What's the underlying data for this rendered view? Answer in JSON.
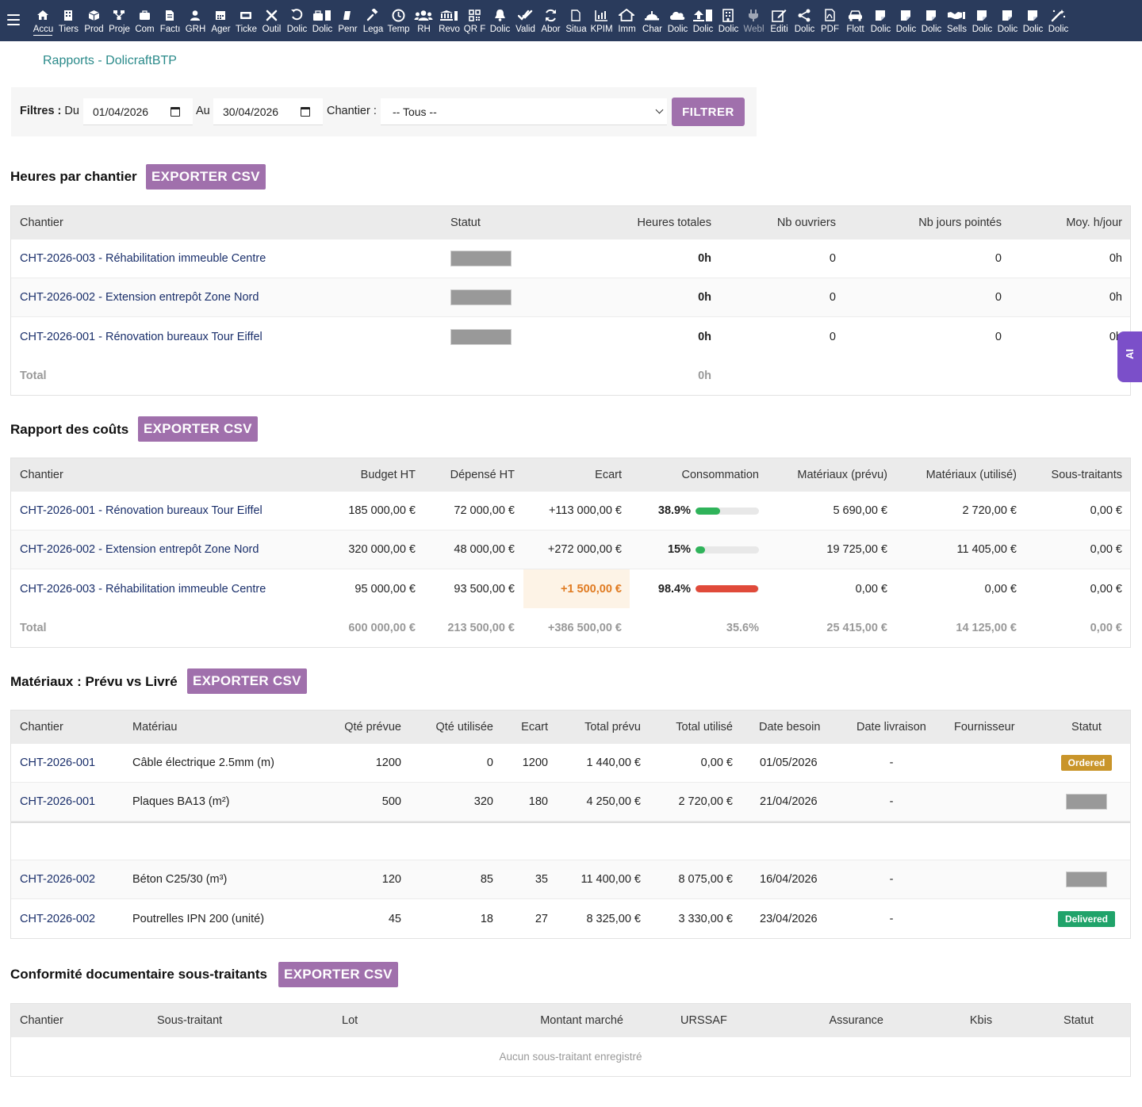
{
  "topbar": {
    "menu": [
      {
        "label": "Accu",
        "icon": "home-icon",
        "active": true
      },
      {
        "label": "Tiers",
        "icon": "building-icon"
      },
      {
        "label": "Prod",
        "icon": "cube-icon"
      },
      {
        "label": "Proje",
        "icon": "network-icon"
      },
      {
        "label": "Com",
        "icon": "suitcase-icon"
      },
      {
        "label": "Factı",
        "icon": "invoice-icon"
      },
      {
        "label": "GRH",
        "icon": "user-icon"
      },
      {
        "label": "Ager",
        "icon": "calendar-icon"
      },
      {
        "label": "Ticke",
        "icon": "ticket-icon"
      },
      {
        "label": "Outil",
        "icon": "tools-icon"
      },
      {
        "label": "Dolic",
        "icon": "undo-icon"
      },
      {
        "label": "Dolic",
        "icon": "toolbox-icon"
      },
      {
        "label": "Penr",
        "icon": "eraser-icon"
      },
      {
        "label": "Lega",
        "icon": "gavel-icon"
      },
      {
        "label": "Temp",
        "icon": "clock-icon"
      },
      {
        "label": "RH",
        "icon": "users-icon"
      },
      {
        "label": "Revo",
        "icon": "bank-icon"
      },
      {
        "label": "QR F",
        "icon": "qrcode-icon"
      },
      {
        "label": "Dolic",
        "icon": "bell-icon"
      },
      {
        "label": "Valid",
        "icon": "check-double-icon"
      },
      {
        "label": "Abor",
        "icon": "sync-icon"
      },
      {
        "label": "Situa",
        "icon": "document-icon"
      },
      {
        "label": "KPIM",
        "icon": "chart-bar-icon"
      },
      {
        "label": "Imm",
        "icon": "house-icon"
      },
      {
        "label": "Char",
        "icon": "hardhat-icon"
      },
      {
        "label": "Dolic",
        "icon": "cloud-icon"
      },
      {
        "label": "Dolic",
        "icon": "upload-icon"
      },
      {
        "label": "Dolic",
        "icon": "office-icon"
      },
      {
        "label": "Webl",
        "icon": "plug-icon",
        "dim": true
      },
      {
        "label": "Editi",
        "icon": "edit-icon"
      },
      {
        "label": "Dolic",
        "icon": "share-icon"
      },
      {
        "label": "PDF",
        "icon": "pdf-icon"
      },
      {
        "label": "Flott",
        "icon": "car-icon"
      },
      {
        "label": "Dolic",
        "icon": "file-icon"
      },
      {
        "label": "Dolic",
        "icon": "file-icon"
      },
      {
        "label": "Dolic",
        "icon": "file-icon"
      },
      {
        "label": "Sells",
        "icon": "handshake-icon"
      },
      {
        "label": "Dolic",
        "icon": "file-icon"
      },
      {
        "label": "Dolic",
        "icon": "file-icon"
      },
      {
        "label": "Dolic",
        "icon": "file-icon"
      },
      {
        "label": "Dolic",
        "icon": "magic-icon"
      }
    ]
  },
  "page": {
    "title": "Rapports - DolicraftBTP"
  },
  "filters": {
    "label": "Filtres :",
    "from_label": "Du",
    "from_value": "01/04/2026",
    "to_label": "Au",
    "to_value": "30/04/2026",
    "chantier_label": "Chantier :",
    "chantier_value": "-- Tous --",
    "submit": "FILTRER"
  },
  "export_label": "EXPORTER CSV",
  "hours": {
    "title": "Heures par chantier",
    "headers": [
      "Chantier",
      "Statut",
      "Heures totales",
      "Nb ouvriers",
      "Nb jours pointés",
      "Moy. h/jour"
    ],
    "rows": [
      {
        "chantier": "CHT-2026-003 - Réhabilitation immeuble Centre",
        "heures": "0h",
        "ouvriers": "0",
        "jours": "0",
        "moy": "0h"
      },
      {
        "chantier": "CHT-2026-002 - Extension entrepôt Zone Nord",
        "heures": "0h",
        "ouvriers": "0",
        "jours": "0",
        "moy": "0h"
      },
      {
        "chantier": "CHT-2026-001 - Rénovation bureaux Tour Eiffel",
        "heures": "0h",
        "ouvriers": "0",
        "jours": "0",
        "moy": "0h"
      }
    ],
    "total": {
      "label": "Total",
      "heures": "0h"
    }
  },
  "costs": {
    "title": "Rapport des coûts",
    "headers": [
      "Chantier",
      "Budget HT",
      "Dépensé HT",
      "Ecart",
      "Consommation",
      "Matériaux (prévu)",
      "Matériaux (utilisé)",
      "Sous-traitants"
    ],
    "rows": [
      {
        "chantier": "CHT-2026-001 - Rénovation bureaux Tour Eiffel",
        "budget": "185 000,00 €",
        "depense": "72 000,00 €",
        "ecart": "+113 000,00 €",
        "conso": "38.9%",
        "conso_fraction": 0.389,
        "bar_color": "#2fb35a",
        "mat_prevu": "5 690,00 €",
        "mat_utilise": "2 720,00 €",
        "sous_traitants": "0,00 €"
      },
      {
        "chantier": "CHT-2026-002 - Extension entrepôt Zone Nord",
        "budget": "320 000,00 €",
        "depense": "48 000,00 €",
        "ecart": "+272 000,00 €",
        "conso": "15%",
        "conso_fraction": 0.15,
        "bar_color": "#2fb35a",
        "mat_prevu": "19 725,00 €",
        "mat_utilise": "11 405,00 €",
        "sous_traitants": "0,00 €"
      },
      {
        "chantier": "CHT-2026-003 - Réhabilitation immeuble Centre",
        "budget": "95 000,00 €",
        "depense": "93 500,00 €",
        "ecart": "+1 500,00 €",
        "conso": "98.4%",
        "conso_fraction": 0.984,
        "bar_color": "#e04a3a",
        "mat_prevu": "0,00 €",
        "mat_utilise": "0,00 €",
        "sous_traitants": "0,00 €"
      }
    ],
    "total": {
      "label": "Total",
      "budget": "600 000,00 €",
      "depense": "213 500,00 €",
      "ecart": "+386 500,00 €",
      "conso": "35.6%",
      "mat_prevu": "25 415,00 €",
      "mat_utilise": "14 125,00 €",
      "sous_traitants": "0,00 €"
    }
  },
  "materials": {
    "title": "Matériaux : Prévu vs Livré",
    "headers": [
      "Chantier",
      "Matériau",
      "Qté prévue",
      "Qté utilisée",
      "Ecart",
      "Total prévu",
      "Total utilisé",
      "Date besoin",
      "Date livraison",
      "Fournisseur",
      "Statut"
    ],
    "rows": [
      {
        "chantier": "CHT-2026-001",
        "materiau": "Câble électrique 2.5mm (m)",
        "qte_prevue": "1200",
        "qte_utilisee": "0",
        "ecart": "1200",
        "total_prevu": "1 440,00 €",
        "total_utilise": "0,00 €",
        "date_besoin": "01/05/2026",
        "date_livraison": "-",
        "statut": "Ordered",
        "statut_color": "#c9952a"
      },
      {
        "chantier": "CHT-2026-001",
        "materiau": "Plaques BA13 (m²)",
        "qte_prevue": "500",
        "qte_utilisee": "320",
        "ecart": "180",
        "total_prevu": "4 250,00 €",
        "total_utilise": "2 720,00 €",
        "date_besoin": "21/04/2026",
        "date_livraison": "-",
        "statut": ""
      },
      {
        "chantier": "CHT-2026-002",
        "materiau": "Béton C25/30 (m³)",
        "qte_prevue": "120",
        "qte_utilisee": "85",
        "ecart": "35",
        "total_prevu": "11 400,00 €",
        "total_utilise": "8 075,00 €",
        "date_besoin": "16/04/2026",
        "date_livraison": "-",
        "statut": ""
      },
      {
        "chantier": "CHT-2026-002",
        "materiau": "Poutrelles IPN 200 (unité)",
        "qte_prevue": "45",
        "qte_utilisee": "18",
        "ecart": "27",
        "total_prevu": "8 325,00 €",
        "total_utilise": "3 330,00 €",
        "date_besoin": "23/04/2026",
        "date_livraison": "-",
        "statut": "Delivered",
        "statut_color": "#20a36a"
      }
    ]
  },
  "compliance": {
    "title": "Conformité documentaire sous-traitants",
    "headers": [
      "Chantier",
      "Sous-traitant",
      "Lot",
      "Montant marché",
      "URSSAF",
      "Assurance",
      "Kbis",
      "Statut"
    ],
    "empty": "Aucun sous-traitant enregistré"
  },
  "ai_tab": {
    "label": "AI"
  }
}
